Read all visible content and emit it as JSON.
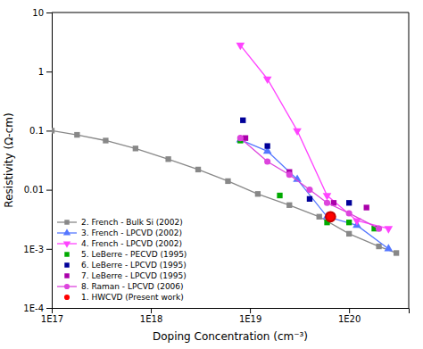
{
  "chart_data": {
    "type": "line",
    "xlabel": "Doping Concentration (cm⁻³)",
    "ylabel": "Resistivity (Ω-cm)",
    "log": true,
    "grid": false,
    "legend": "lower left",
    "xlim": [
      1e+17,
      4e+20
    ],
    "ylim": [
      0.0001,
      10
    ],
    "xticks": [
      {
        "value": 1e+17,
        "label": "1E17"
      },
      {
        "value": 1e+18,
        "label": "1E18"
      },
      {
        "value": 1e+19,
        "label": "1E19"
      },
      {
        "value": 1e+20,
        "label": "1E20"
      }
    ],
    "yticks": [
      {
        "value": 0.0001,
        "label": "1E-4"
      },
      {
        "value": 0.001,
        "label": "1E-3"
      },
      0.01,
      0.1,
      1,
      10
    ],
    "series": [
      {
        "name": "2. French - Bulk Si (2002)",
        "color": "#888888",
        "marker": "square",
        "line_style": "solid",
        "x": [
          1e+17,
          1.8e+17,
          3.5e+17,
          7e+17,
          1.5e+18,
          3e+18,
          6e+18,
          1.2e+19,
          2.5e+19,
          5e+19,
          1e+20,
          2e+20,
          3e+20
        ],
        "values": [
          0.1,
          0.085,
          0.068,
          0.05,
          0.033,
          0.022,
          0.014,
          0.0085,
          0.0055,
          0.0035,
          0.0018,
          0.0011,
          0.00085
        ]
      },
      {
        "name": "3. French - LPCVD (2002)",
        "color": "#5577ff",
        "marker": "triangle-up",
        "line_style": "solid",
        "x": [
          8e+18,
          1.5e+19,
          3e+19,
          6e+19,
          1.2e+20,
          2.5e+20
        ],
        "values": [
          0.07,
          0.045,
          0.015,
          0.0035,
          0.0025,
          0.001
        ]
      },
      {
        "name": "4. French - LPCVD (2002)",
        "color": "#ff44ff",
        "marker": "triangle-down",
        "line_style": "solid",
        "x": [
          8e+18,
          1.5e+19,
          3e+19,
          6e+19,
          1.2e+20,
          2.5e+20
        ],
        "values": [
          2.8,
          0.75,
          0.1,
          0.008,
          0.003,
          0.0022
        ]
      },
      {
        "name": "5. LeBerre - PECVD (1995)",
        "color": "#00aa00",
        "marker": "square",
        "line_style": "none",
        "x": [
          8e+18,
          2e+19,
          6e+19,
          1e+20,
          1.8e+20
        ],
        "values": [
          0.068,
          0.008,
          0.0028,
          0.0028,
          0.0022
        ]
      },
      {
        "name": "6. LeBerre - LPCVD (1995)",
        "color": "#000099",
        "marker": "square",
        "line_style": "none",
        "x": [
          8.5e+18,
          1.5e+19,
          4e+19,
          1e+20
        ],
        "values": [
          0.15,
          0.055,
          0.007,
          0.006
        ]
      },
      {
        "name": "7. LeBerre - LPCVD (1995)",
        "color": "#aa00aa",
        "marker": "square",
        "line_style": "none",
        "x": [
          9e+18,
          2.5e+19,
          7e+19,
          1.5e+20
        ],
        "values": [
          0.075,
          0.02,
          0.006,
          0.005
        ]
      },
      {
        "name": "8. Raman - LPCVD (2006)",
        "color": "#dd44dd",
        "marker": "circle",
        "line_style": "solid",
        "x": [
          8e+18,
          1.5e+19,
          2.5e+19,
          4e+19,
          6e+19,
          1e+20,
          2e+20
        ],
        "values": [
          0.075,
          0.03,
          0.018,
          0.01,
          0.006,
          0.004,
          0.0022
        ]
      },
      {
        "name": "1. HWCVD (Present work)",
        "color": "red",
        "marker": "circle",
        "line_style": "none",
        "x": [
          6.5e+19
        ],
        "values": [
          0.0035
        ]
      }
    ]
  }
}
